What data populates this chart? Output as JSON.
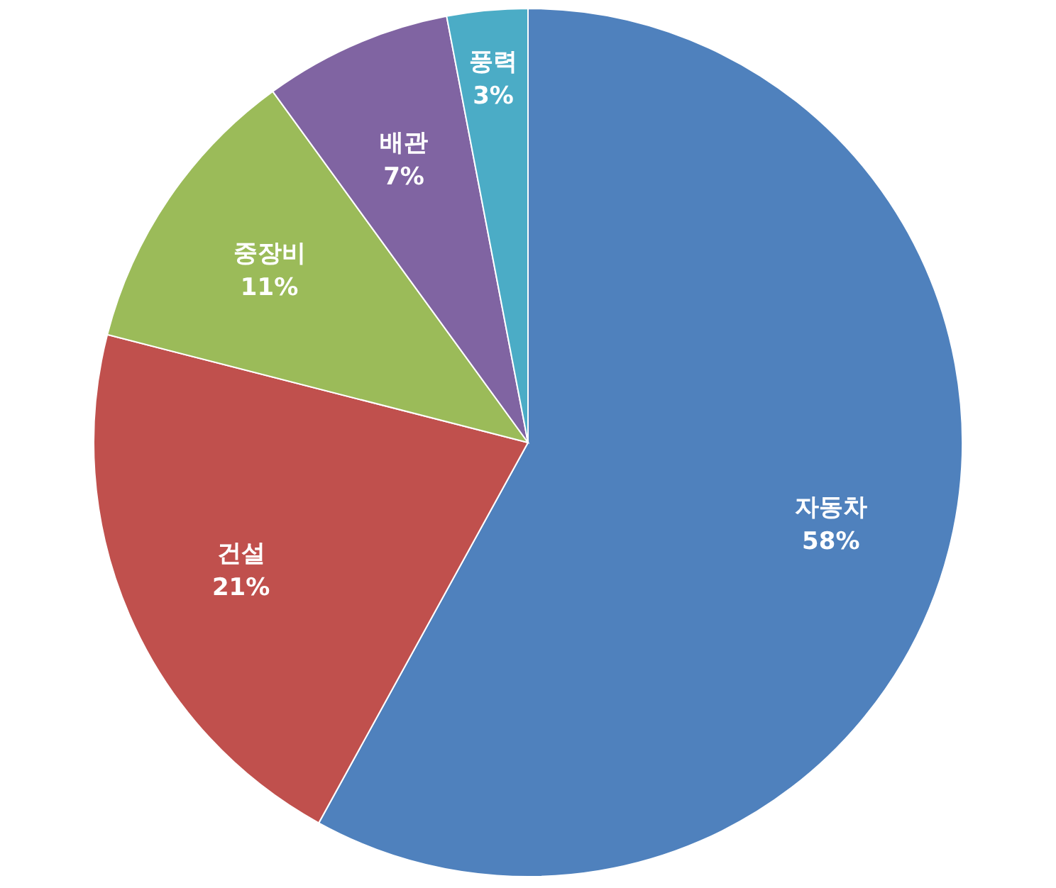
{
  "chart_data": {
    "type": "pie",
    "categories": [
      "자동차",
      "건설",
      "중장비",
      "배관",
      "풍력"
    ],
    "values": [
      58,
      21,
      11,
      7,
      3
    ],
    "value_labels": [
      "58%",
      "21%",
      "11%",
      "7%",
      "3%"
    ],
    "colors": [
      "#4f81bd",
      "#c0504d",
      "#9bbb59",
      "#8064a2",
      "#4bacc6"
    ]
  }
}
